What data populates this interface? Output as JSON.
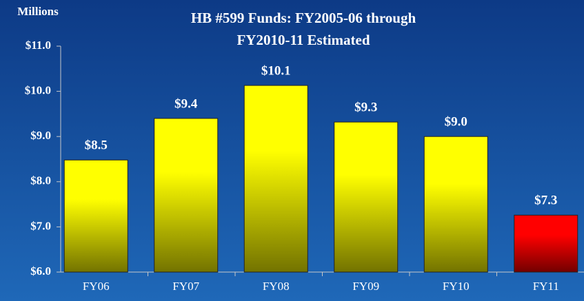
{
  "chart_data": {
    "type": "bar",
    "title": [
      "HB #599 Funds:  FY2005-06 through",
      "FY2010-11 Estimated"
    ],
    "y_label": "Millions",
    "categories": [
      "FY06",
      "FY07",
      "FY08",
      "FY09",
      "FY10",
      "FY11"
    ],
    "values": [
      8.48,
      9.4,
      10.13,
      9.32,
      9.0,
      7.26
    ],
    "value_labels": [
      "$8.5",
      "$9.4",
      "$10.1",
      "$9.3",
      "$9.0",
      "$7.3"
    ],
    "colors": [
      "#ffff00",
      "#ffff00",
      "#ffff00",
      "#ffff00",
      "#ffff00",
      "#ff0000"
    ],
    "ylim": [
      6,
      11
    ],
    "yticks": [
      {
        "value": 6,
        "label": "$6.0"
      },
      {
        "value": 7,
        "label": "$7.0"
      },
      {
        "value": 8,
        "label": "$8.0"
      },
      {
        "value": 9,
        "label": "$9.0"
      },
      {
        "value": 10,
        "label": "$10.0"
      },
      {
        "value": 11,
        "label": "$11.0"
      }
    ],
    "grid": false
  }
}
